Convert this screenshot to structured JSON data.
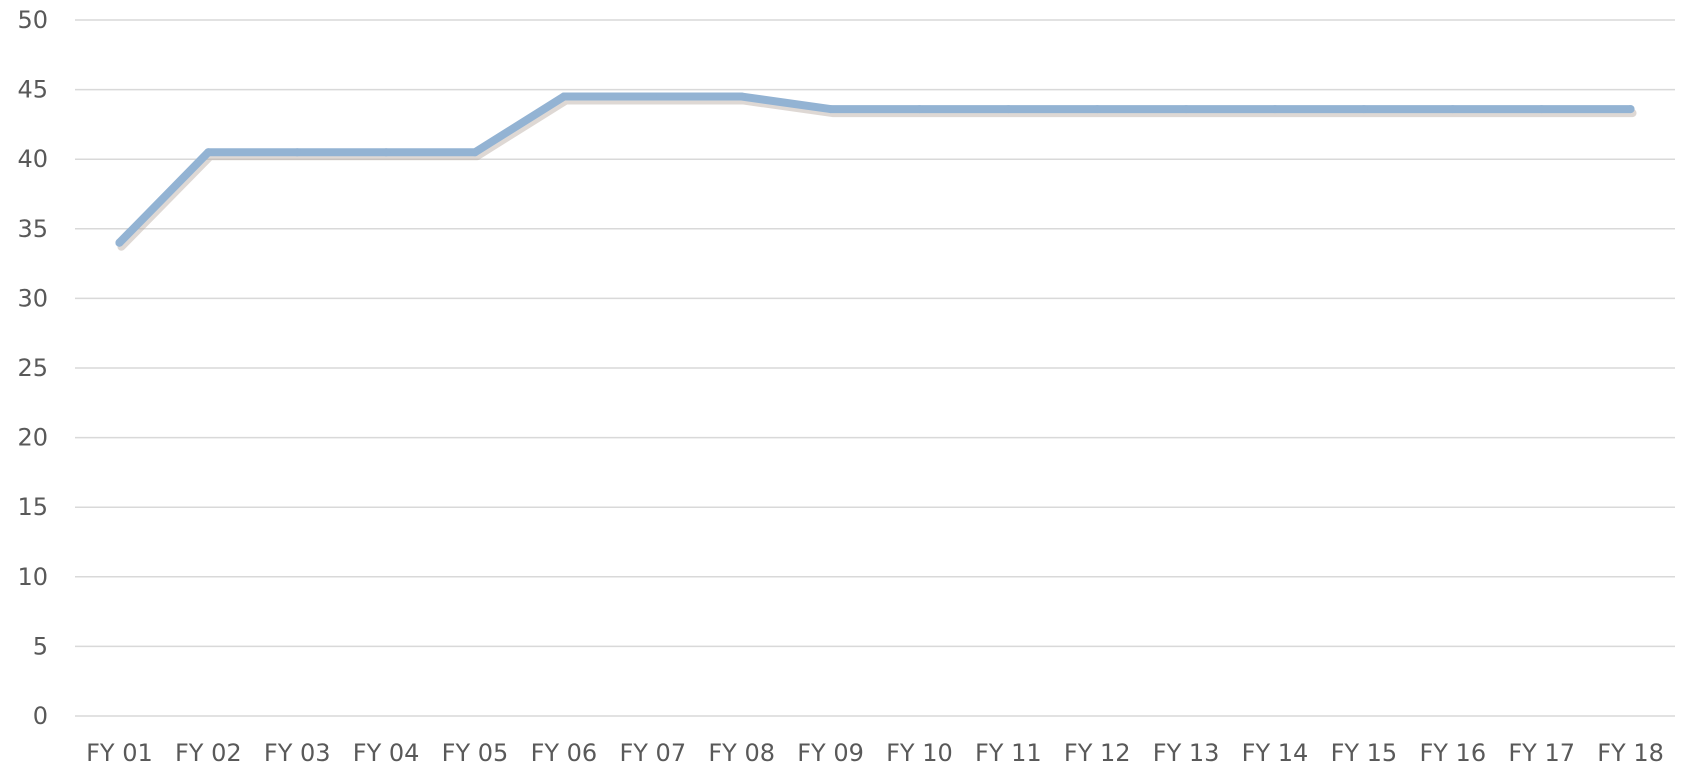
{
  "chart_data": {
    "type": "line",
    "title": "",
    "xlabel": "",
    "ylabel": "",
    "categories": [
      "FY 01",
      "FY 02",
      "FY 03",
      "FY 04",
      "FY 05",
      "FY 06",
      "FY 07",
      "FY 08",
      "FY 09",
      "FY 10",
      "FY 11",
      "FY 12",
      "FY 13",
      "FY 14",
      "FY 15",
      "FY 16",
      "FY 17",
      "FY 18"
    ],
    "series": [
      {
        "values": [
          34,
          40.5,
          40.5,
          40.5,
          40.5,
          44.5,
          44.5,
          44.5,
          43.6,
          43.6,
          43.6,
          43.6,
          43.6,
          43.6,
          43.6,
          43.6,
          43.6,
          43.6
        ],
        "color": "#93b3d3"
      }
    ],
    "ylim": [
      0,
      50
    ],
    "yticks": [
      "0",
      "5",
      "10",
      "15",
      "20",
      "25",
      "30",
      "35",
      "40",
      "45",
      "50"
    ],
    "grid": true,
    "legend": "none"
  }
}
